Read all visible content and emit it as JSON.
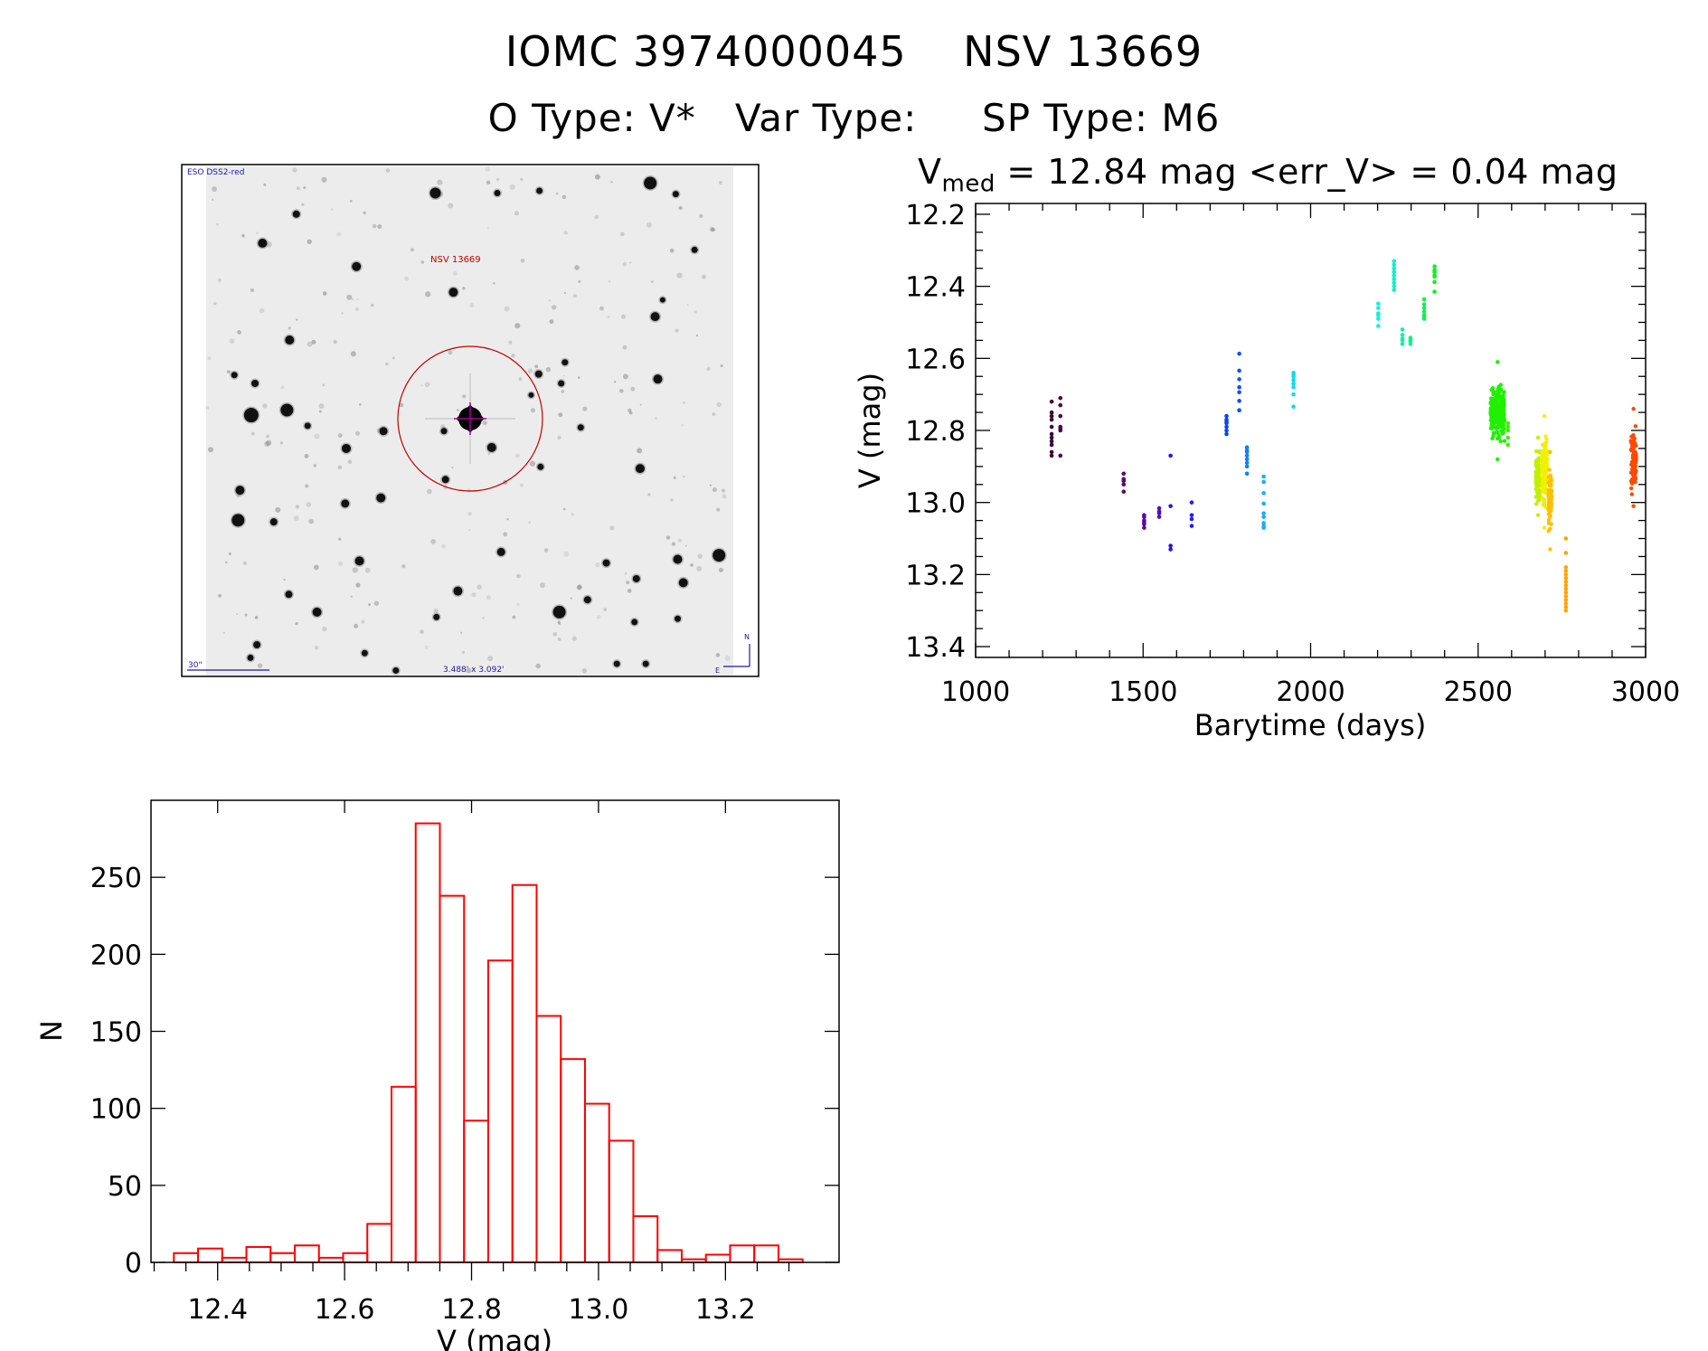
{
  "header": {
    "title_line1": "IOMC 3974000045    NSV 13669",
    "title_line2": "O Type: V*   Var Type:     SP Type: M6",
    "vmed_prefix": "V",
    "vmed_sub": "med",
    "vmed_rest": " = 12.84 mag <err_V> = 0.04 mag"
  },
  "finder_image": {
    "survey_label": "ESO DSS2-red",
    "target_label": "NSV 13669",
    "scale_label": "30\"",
    "fov_label": "3.488' x 3.092'",
    "north_label": "N",
    "east_label": "E",
    "colors": {
      "target": "#c00000",
      "annotation": "#1a1aa0",
      "crosshair": "#a000a0"
    }
  },
  "chart_data": [
    {
      "type": "scatter",
      "title": "",
      "xlabel": "Barytime (days)",
      "ylabel": "V (mag)",
      "xlim": [
        1000,
        3000
      ],
      "ylim": [
        13.43,
        12.17
      ],
      "y_inverted": true,
      "xticks": [
        "1000",
        "1500",
        "2000",
        "2500",
        "3000"
      ],
      "yticks": [
        "12.2",
        "12.4",
        "12.6",
        "12.8",
        "13.0",
        "13.2",
        "13.4"
      ],
      "color_by": "time (rainbow)",
      "groups": [
        {
          "t": 1227,
          "color": "#3a0838",
          "mags": [
            12.72,
            12.75,
            12.76,
            12.77,
            12.79,
            12.81,
            12.82,
            12.83,
            12.84,
            12.86,
            12.87
          ]
        },
        {
          "t": 1253,
          "color": "#4a0848",
          "mags": [
            12.71,
            12.73,
            12.76,
            12.79,
            12.795,
            12.8,
            12.87
          ]
        },
        {
          "t": 1442,
          "color": "#5a0870",
          "mags": [
            12.92,
            12.935,
            12.94,
            12.95,
            12.97
          ]
        },
        {
          "t": 1503,
          "color": "#5c08a0",
          "mags": [
            13.035,
            13.04,
            13.05,
            13.055,
            13.06,
            13.07
          ]
        },
        {
          "t": 1548,
          "color": "#5010b8",
          "mags": [
            13.016,
            13.025,
            13.03,
            13.04
          ]
        },
        {
          "t": 1582,
          "color": "#3010e0",
          "mags": [
            12.87,
            13.01,
            13.12,
            13.13
          ]
        },
        {
          "t": 1645,
          "color": "#2020f0",
          "mags": [
            13.0,
            13.035,
            13.046,
            13.065
          ]
        },
        {
          "t": 1749,
          "color": "#1040ff",
          "mags": [
            12.76,
            12.77,
            12.775,
            12.78,
            12.79,
            12.8,
            12.81
          ]
        },
        {
          "t": 1787,
          "color": "#1050ff",
          "mags": [
            12.587,
            12.634,
            12.658,
            12.68,
            12.694,
            12.718,
            12.744
          ]
        },
        {
          "t": 1810,
          "color": "#1080ff",
          "mags": [
            12.847,
            12.855,
            12.86,
            12.87,
            12.88,
            12.89,
            12.9,
            12.92
          ]
        },
        {
          "t": 1860,
          "color": "#10b0ff",
          "mags": [
            12.928,
            12.943,
            12.974,
            13.003,
            13.03,
            13.04,
            13.057,
            13.065,
            13.07
          ]
        },
        {
          "t": 1949,
          "color": "#10d8f0",
          "mags": [
            12.64,
            12.645,
            12.65,
            12.66,
            12.67,
            12.68,
            12.7,
            12.734
          ]
        },
        {
          "t": 2202,
          "color": "#10f0e0",
          "mags": [
            12.448,
            12.46,
            12.475,
            12.48,
            12.49,
            12.51
          ]
        },
        {
          "t": 2249,
          "color": "#10f0c8",
          "mags": [
            12.33,
            12.34,
            12.35,
            12.36,
            12.37,
            12.38,
            12.39,
            12.4,
            12.41
          ]
        },
        {
          "t": 2274,
          "color": "#10f0a0",
          "mags": [
            12.52,
            12.535,
            12.545,
            12.55,
            12.56
          ]
        },
        {
          "t": 2298,
          "color": "#10f090",
          "mags": [
            12.543,
            12.548,
            12.553,
            12.56
          ]
        },
        {
          "t": 2339,
          "color": "#10f050",
          "mags": [
            12.436,
            12.45,
            12.46,
            12.47,
            12.48,
            12.483,
            12.49
          ]
        },
        {
          "t": 2370,
          "color": "#10f020",
          "mags": [
            12.345,
            12.355,
            12.36,
            12.37,
            12.373,
            12.388,
            12.415
          ]
        },
        {
          "t": 2589,
          "color": "#40f000",
          "mags": [
            12.78,
            12.79,
            12.8,
            12.82,
            12.84
          ]
        },
        {
          "t": 2762,
          "color": "#ffa500",
          "mags": [
            13.1,
            13.14,
            13.18,
            13.19,
            13.2,
            13.21,
            13.22,
            13.23,
            13.24,
            13.25,
            13.26,
            13.27,
            13.28,
            13.29,
            13.3
          ]
        }
      ],
      "dense_clusters": [
        {
          "t_range": [
            2537,
            2579
          ],
          "mag_range": [
            12.66,
            12.84
          ],
          "n": 260,
          "color": "#20f000",
          "extremes": [
            12.61,
            12.88
          ]
        },
        {
          "t_range": [
            2672,
            2686
          ],
          "mag_range": [
            12.84,
            13.03
          ],
          "n": 90,
          "color": "#c0f000",
          "extremes": [
            12.82,
            13.035
          ]
        },
        {
          "t_range": [
            2690,
            2706
          ],
          "mag_range": [
            12.78,
            13.05
          ],
          "n": 120,
          "color": "#f0f000",
          "extremes": [
            12.76,
            13.07
          ]
        },
        {
          "t_range": [
            2710,
            2720
          ],
          "mag_range": [
            12.88,
            13.1
          ],
          "n": 80,
          "color": "#ffc000",
          "extremes": [
            12.86,
            13.13
          ]
        },
        {
          "t_range": [
            2956,
            2972
          ],
          "mag_range": [
            12.77,
            12.99
          ],
          "n": 90,
          "color": "#ff4a00",
          "extremes": [
            12.74,
            13.01
          ]
        }
      ]
    },
    {
      "type": "bar",
      "subtype": "histogram",
      "title": "",
      "xlabel": "V (mag)",
      "ylabel": "N",
      "xlim": [
        12.295,
        13.379
      ],
      "ylim": [
        0,
        300
      ],
      "xticks": [
        "12.4",
        "12.6",
        "12.8",
        "13.0",
        "13.2"
      ],
      "yticks": [
        "0",
        "50",
        "100",
        "150",
        "200",
        "250"
      ],
      "bin_start": 12.331,
      "bin_width": 0.0381,
      "color": "#ff0000",
      "values": [
        6,
        9,
        3,
        10,
        6,
        11,
        3,
        6,
        25,
        114,
        285,
        238,
        92,
        196,
        245,
        160,
        132,
        103,
        79,
        30,
        8,
        2,
        5,
        11,
        11,
        2
      ]
    }
  ]
}
